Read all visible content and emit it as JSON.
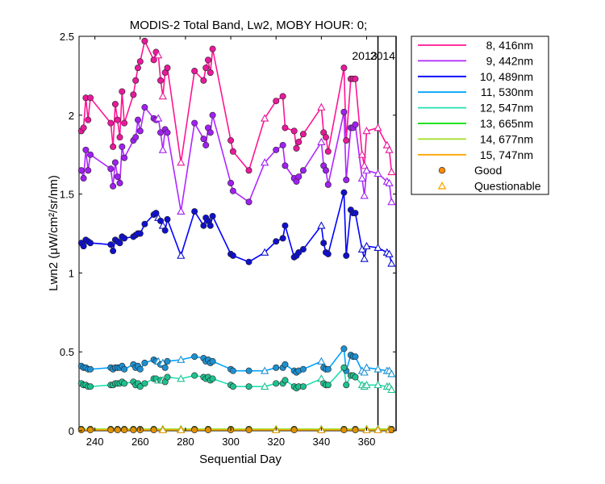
{
  "chart_data": {
    "type": "line",
    "title": "MODIS-2 Total Band, Lw2, MOBY HOUR: 0;",
    "xlabel": "Sequential Day",
    "ylabel": "Lwn2 (μW/cm²/sr/nm)",
    "xlim": [
      233,
      373
    ],
    "ylim": [
      0,
      2.5
    ],
    "xticks": [
      240,
      260,
      280,
      300,
      320,
      340,
      360
    ],
    "yticks": [
      0,
      0.5,
      1,
      1.5,
      2,
      2.5
    ],
    "xtick_labels": [
      "240",
      "260",
      "280",
      "300",
      "320",
      "340",
      "360"
    ],
    "ytick_labels": [
      "0",
      "0.5",
      "1",
      "1.5",
      "2",
      "2.5"
    ],
    "grid": false,
    "legend_position": "outside-top-right",
    "year_markers": [
      {
        "x": 365,
        "label": "2013"
      },
      {
        "x": 373,
        "label": "2014"
      }
    ],
    "series": [
      {
        "name": "8, 416nm",
        "color": "#ff1493",
        "marker_color": "#e8199a",
        "x": [
          234,
          235,
          236,
          237,
          238,
          247,
          248,
          249,
          250,
          251,
          252,
          253,
          257,
          258,
          259,
          260,
          262,
          266,
          267,
          268,
          269,
          270,
          271,
          272,
          278,
          284,
          288,
          289,
          290,
          291,
          292,
          300,
          301,
          308,
          315,
          320,
          323,
          324,
          328,
          329,
          330,
          332,
          340,
          341,
          342,
          343,
          350,
          351,
          353,
          354,
          355,
          358,
          359,
          360,
          365,
          369,
          370,
          371
        ],
        "y": [
          1.9,
          1.92,
          2.11,
          1.97,
          2.11,
          1.95,
          1.8,
          2.07,
          1.97,
          1.86,
          2.15,
          1.95,
          2.13,
          2.22,
          2.3,
          2.34,
          2.47,
          2.35,
          2.4,
          2.38,
          2.22,
          2.12,
          2.27,
          2.3,
          1.7,
          2.28,
          2.22,
          2.3,
          2.35,
          2.27,
          2.42,
          1.84,
          1.77,
          1.65,
          1.98,
          2.09,
          2.12,
          1.92,
          1.9,
          1.79,
          1.83,
          1.88,
          2.05,
          1.89,
          1.86,
          1.77,
          2.3,
          1.84,
          2.23,
          2.23,
          2.23,
          1.75,
          1.68,
          1.9,
          1.92,
          1.81,
          1.78,
          1.64
        ],
        "questionable": [
          0,
          0,
          0,
          0,
          0,
          0,
          0,
          0,
          0,
          0,
          0,
          0,
          0,
          0,
          0,
          0,
          0,
          0,
          0,
          1,
          0,
          1,
          0,
          0,
          1,
          0,
          0,
          0,
          0,
          0,
          0,
          0,
          0,
          0,
          1,
          0,
          0,
          0,
          0,
          0,
          0,
          0,
          1,
          0,
          0,
          0,
          0,
          0,
          0,
          0,
          0,
          1,
          1,
          1,
          1,
          1,
          1,
          1
        ]
      },
      {
        "name": "9, 442nm",
        "color": "#b026ff",
        "marker_color": "#a020f0",
        "x": [
          234,
          235,
          236,
          237,
          238,
          247,
          248,
          249,
          250,
          251,
          252,
          253,
          257,
          258,
          259,
          260,
          262,
          266,
          267,
          268,
          269,
          270,
          271,
          272,
          278,
          284,
          288,
          289,
          290,
          291,
          292,
          300,
          301,
          308,
          315,
          320,
          323,
          324,
          328,
          329,
          330,
          332,
          340,
          341,
          342,
          343,
          350,
          351,
          353,
          354,
          355,
          358,
          359,
          360,
          365,
          369,
          370,
          371
        ],
        "y": [
          1.65,
          1.6,
          1.78,
          1.65,
          1.75,
          1.66,
          1.55,
          1.7,
          1.61,
          1.57,
          1.8,
          1.73,
          1.84,
          1.86,
          1.97,
          1.9,
          2.05,
          1.98,
          1.97,
          1.98,
          1.89,
          1.78,
          1.91,
          1.89,
          1.39,
          1.95,
          1.85,
          1.81,
          1.92,
          1.89,
          2.0,
          1.57,
          1.52,
          1.45,
          1.7,
          1.78,
          1.81,
          1.68,
          1.6,
          1.58,
          1.61,
          1.65,
          1.83,
          1.68,
          1.65,
          1.56,
          2.02,
          1.59,
          1.92,
          1.92,
          1.94,
          1.6,
          1.49,
          1.65,
          1.63,
          1.58,
          1.57,
          1.45
        ],
        "questionable": [
          0,
          0,
          0,
          0,
          0,
          0,
          0,
          0,
          0,
          0,
          0,
          0,
          0,
          0,
          0,
          0,
          0,
          0,
          0,
          1,
          0,
          1,
          0,
          0,
          1,
          0,
          0,
          0,
          0,
          0,
          0,
          0,
          0,
          0,
          1,
          0,
          0,
          0,
          0,
          0,
          0,
          0,
          1,
          0,
          0,
          0,
          0,
          0,
          0,
          0,
          0,
          1,
          1,
          1,
          1,
          1,
          1,
          1
        ]
      },
      {
        "name": "10, 489nm",
        "color": "#0000ff",
        "marker_color": "#1010cc",
        "x": [
          234,
          235,
          236,
          237,
          238,
          247,
          248,
          249,
          250,
          251,
          252,
          253,
          257,
          258,
          259,
          260,
          262,
          266,
          267,
          268,
          269,
          270,
          271,
          272,
          278,
          284,
          288,
          289,
          290,
          291,
          292,
          300,
          301,
          308,
          315,
          320,
          323,
          324,
          328,
          329,
          330,
          332,
          340,
          341,
          342,
          343,
          350,
          351,
          353,
          354,
          355,
          358,
          359,
          360,
          365,
          369,
          370,
          371
        ],
        "y": [
          1.19,
          1.17,
          1.21,
          1.2,
          1.19,
          1.18,
          1.14,
          1.21,
          1.2,
          1.19,
          1.23,
          1.22,
          1.23,
          1.24,
          1.25,
          1.25,
          1.31,
          1.37,
          1.38,
          1.35,
          1.33,
          1.3,
          1.27,
          1.34,
          1.11,
          1.39,
          1.3,
          1.35,
          1.33,
          1.3,
          1.36,
          1.12,
          1.11,
          1.07,
          1.13,
          1.2,
          1.22,
          1.3,
          1.1,
          1.11,
          1.13,
          1.15,
          1.3,
          1.19,
          1.13,
          1.12,
          1.51,
          1.11,
          1.4,
          1.38,
          1.38,
          1.15,
          1.09,
          1.17,
          1.16,
          1.13,
          1.12,
          1.06
        ],
        "questionable": [
          0,
          0,
          0,
          0,
          0,
          0,
          0,
          0,
          0,
          0,
          0,
          0,
          0,
          0,
          0,
          0,
          0,
          0,
          0,
          1,
          0,
          1,
          0,
          0,
          1,
          0,
          0,
          0,
          0,
          0,
          0,
          0,
          0,
          0,
          1,
          0,
          0,
          0,
          0,
          0,
          0,
          0,
          1,
          0,
          0,
          0,
          0,
          0,
          0,
          0,
          0,
          1,
          1,
          1,
          1,
          1,
          1,
          1
        ]
      },
      {
        "name": "11, 530nm",
        "color": "#00a2ff",
        "marker_color": "#1e90d0",
        "x": [
          234,
          235,
          236,
          237,
          238,
          247,
          248,
          249,
          250,
          251,
          252,
          253,
          257,
          258,
          259,
          260,
          262,
          266,
          267,
          268,
          269,
          270,
          271,
          272,
          278,
          284,
          288,
          289,
          290,
          291,
          292,
          300,
          301,
          308,
          315,
          320,
          323,
          324,
          328,
          329,
          330,
          332,
          340,
          341,
          342,
          343,
          350,
          351,
          353,
          354,
          355,
          358,
          359,
          360,
          365,
          369,
          370,
          371
        ],
        "y": [
          0.41,
          0.4,
          0.4,
          0.39,
          0.39,
          0.4,
          0.39,
          0.4,
          0.4,
          0.4,
          0.41,
          0.39,
          0.42,
          0.4,
          0.41,
          0.39,
          0.43,
          0.45,
          0.44,
          0.44,
          0.42,
          0.43,
          0.4,
          0.44,
          0.45,
          0.47,
          0.46,
          0.44,
          0.45,
          0.43,
          0.44,
          0.39,
          0.38,
          0.38,
          0.38,
          0.4,
          0.4,
          0.42,
          0.38,
          0.37,
          0.38,
          0.39,
          0.44,
          0.4,
          0.39,
          0.39,
          0.52,
          0.38,
          0.48,
          0.47,
          0.47,
          0.38,
          0.37,
          0.4,
          0.39,
          0.38,
          0.38,
          0.36
        ],
        "questionable": [
          0,
          0,
          0,
          0,
          0,
          0,
          0,
          0,
          0,
          0,
          0,
          0,
          0,
          0,
          0,
          0,
          0,
          0,
          0,
          1,
          0,
          1,
          0,
          0,
          1,
          0,
          0,
          0,
          0,
          0,
          0,
          0,
          0,
          0,
          1,
          0,
          0,
          0,
          0,
          0,
          0,
          0,
          1,
          0,
          0,
          0,
          0,
          0,
          0,
          0,
          0,
          1,
          1,
          1,
          1,
          1,
          1,
          1
        ]
      },
      {
        "name": "12, 547nm",
        "color": "#20e0b0",
        "marker_color": "#20c090",
        "x": [
          234,
          235,
          236,
          237,
          238,
          247,
          248,
          249,
          250,
          251,
          252,
          253,
          257,
          258,
          259,
          260,
          262,
          266,
          267,
          268,
          269,
          270,
          271,
          272,
          278,
          284,
          288,
          289,
          290,
          291,
          292,
          300,
          301,
          308,
          315,
          320,
          323,
          324,
          328,
          329,
          330,
          332,
          340,
          341,
          342,
          343,
          350,
          351,
          353,
          354,
          355,
          358,
          359,
          360,
          365,
          369,
          370,
          371
        ],
        "y": [
          0.3,
          0.29,
          0.29,
          0.28,
          0.28,
          0.29,
          0.29,
          0.3,
          0.3,
          0.3,
          0.31,
          0.3,
          0.31,
          0.29,
          0.3,
          0.28,
          0.3,
          0.33,
          0.33,
          0.32,
          0.32,
          0.32,
          0.31,
          0.34,
          0.33,
          0.35,
          0.34,
          0.33,
          0.34,
          0.32,
          0.33,
          0.29,
          0.28,
          0.28,
          0.28,
          0.3,
          0.3,
          0.32,
          0.28,
          0.27,
          0.28,
          0.28,
          0.33,
          0.3,
          0.29,
          0.29,
          0.4,
          0.29,
          0.35,
          0.35,
          0.34,
          0.29,
          0.28,
          0.29,
          0.29,
          0.28,
          0.28,
          0.26
        ],
        "questionable": [
          0,
          0,
          0,
          0,
          0,
          0,
          0,
          0,
          0,
          0,
          0,
          0,
          0,
          0,
          0,
          0,
          0,
          0,
          0,
          1,
          0,
          1,
          0,
          0,
          1,
          0,
          0,
          0,
          0,
          0,
          0,
          0,
          0,
          0,
          1,
          0,
          0,
          0,
          0,
          0,
          0,
          0,
          1,
          0,
          0,
          0,
          0,
          0,
          0,
          0,
          0,
          1,
          1,
          1,
          1,
          1,
          1,
          1
        ]
      },
      {
        "name": "13, 665nm",
        "color": "#00e000",
        "marker_color": "#30c030",
        "x": [
          234,
          238,
          247,
          250,
          253,
          257,
          260,
          266,
          270,
          278,
          284,
          290,
          300,
          308,
          320,
          328,
          340,
          350,
          355,
          360,
          365,
          370,
          371
        ],
        "y": [
          0.01,
          0.01,
          0.01,
          0.01,
          0.01,
          0.01,
          0.01,
          0.01,
          0.01,
          0.01,
          0.01,
          0.01,
          0.01,
          0.01,
          0.01,
          0.01,
          0.01,
          0.01,
          0.01,
          0.01,
          0.01,
          0.01,
          0.01
        ],
        "questionable": [
          0,
          0,
          0,
          0,
          0,
          0,
          0,
          0,
          1,
          1,
          0,
          0,
          0,
          0,
          1,
          0,
          1,
          0,
          0,
          1,
          1,
          1,
          0
        ]
      },
      {
        "name": "14, 677nm",
        "color": "#a0e020",
        "marker_color": "#90c020",
        "x": [
          234,
          238,
          247,
          250,
          253,
          257,
          260,
          266,
          270,
          278,
          284,
          290,
          300,
          308,
          320,
          328,
          340,
          350,
          355,
          360,
          365,
          370,
          371
        ],
        "y": [
          0.01,
          0.01,
          0.01,
          0.01,
          0.01,
          0.01,
          0.01,
          0.01,
          0.01,
          0.01,
          0.01,
          0.01,
          0.01,
          0.01,
          0.01,
          0.01,
          0.01,
          0.01,
          0.01,
          0.01,
          0.01,
          0.01,
          0.01
        ],
        "questionable": [
          0,
          0,
          0,
          0,
          0,
          0,
          0,
          0,
          1,
          1,
          0,
          0,
          0,
          0,
          1,
          0,
          1,
          0,
          0,
          1,
          1,
          1,
          0
        ]
      },
      {
        "name": "15, 747nm",
        "color": "#ffa500",
        "marker_color": "#e09000",
        "x": [
          234,
          238,
          247,
          250,
          253,
          257,
          260,
          266,
          270,
          278,
          284,
          290,
          300,
          308,
          320,
          328,
          340,
          350,
          355,
          360,
          365,
          370,
          371
        ],
        "y": [
          0.005,
          0.005,
          0.005,
          0.005,
          0.005,
          0.005,
          0.005,
          0.005,
          0.005,
          0.005,
          0.005,
          0.005,
          0.005,
          0.005,
          0.005,
          0.005,
          0.005,
          0.005,
          0.005,
          0.005,
          0.005,
          0.005,
          0.005
        ],
        "questionable": [
          0,
          0,
          0,
          0,
          0,
          0,
          0,
          0,
          1,
          1,
          0,
          0,
          0,
          0,
          1,
          0,
          1,
          0,
          0,
          1,
          1,
          1,
          0
        ]
      }
    ],
    "legend_markers": [
      {
        "label": "Good",
        "color": "#ff8c00",
        "shape": "circle"
      },
      {
        "label": "Questionable",
        "color": "#ffa500",
        "shape": "triangle"
      }
    ]
  }
}
